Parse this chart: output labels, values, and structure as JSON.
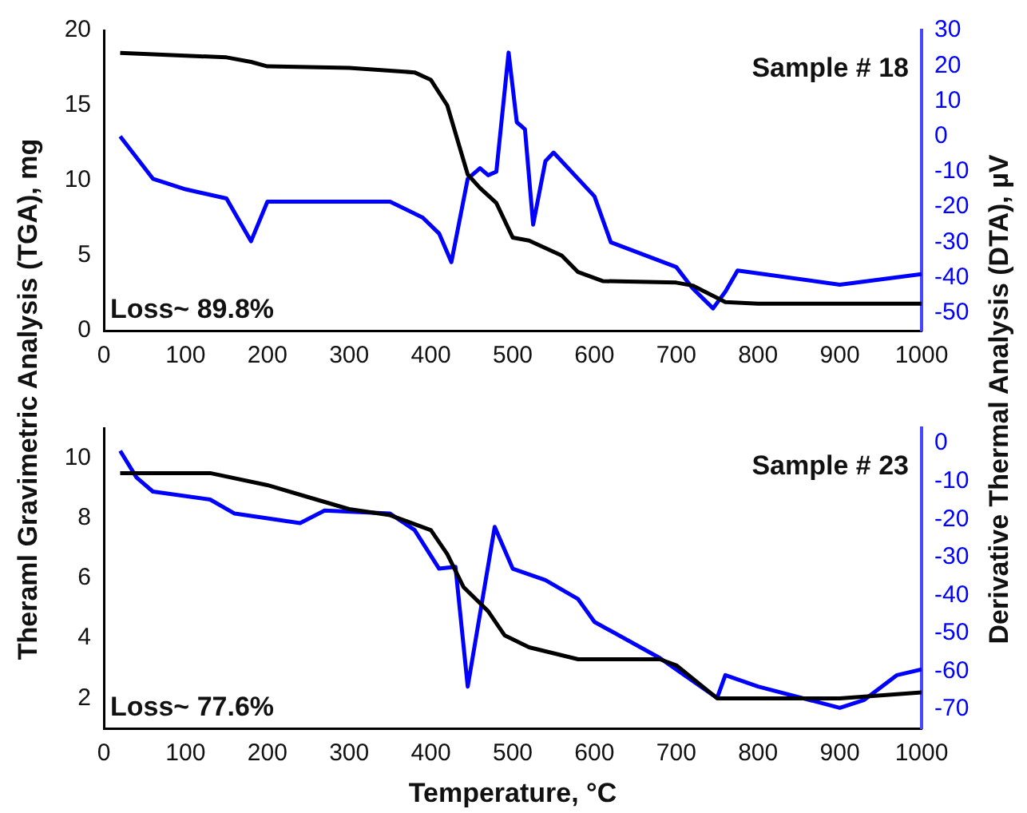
{
  "chart_data": [
    {
      "type": "line",
      "ylabel": "Theraml Gravimetric Analysis (TGA), mg",
      "y2label": "Derivative Thermal Analysis (DTA), µV",
      "annotations": [
        "Sample # 18",
        "Loss~ 89.8%"
      ],
      "xlim": [
        0,
        1000
      ],
      "xticks": [
        0,
        100,
        200,
        300,
        400,
        500,
        600,
        700,
        800,
        900,
        1000
      ],
      "ylim": [
        0,
        20
      ],
      "yticks": [
        0,
        5,
        10,
        15,
        20
      ],
      "y2lim": [
        -55,
        30
      ],
      "y2ticks": [
        -50,
        -40,
        -30,
        -20,
        -10,
        0,
        10,
        20,
        30
      ],
      "series": [
        {
          "color": "#000000",
          "x": [
            20,
            150,
            180,
            200,
            300,
            380,
            400,
            420,
            445,
            460,
            480,
            500,
            520,
            560,
            580,
            610,
            700,
            720,
            760,
            800,
            1000
          ],
          "values": [
            18.5,
            18.2,
            17.9,
            17.6,
            17.5,
            17.2,
            16.7,
            15,
            10.4,
            9.5,
            8.5,
            6.2,
            6,
            5,
            3.9,
            3.3,
            3.2,
            3,
            1.9,
            1.8,
            1.8
          ]
        },
        {
          "color": "#0000ff",
          "axis": "y2",
          "x": [
            20,
            60,
            100,
            150,
            180,
            200,
            350,
            390,
            410,
            425,
            445,
            460,
            470,
            480,
            495,
            505,
            515,
            525,
            540,
            550,
            600,
            620,
            700,
            720,
            745,
            760,
            775,
            900,
            1000
          ],
          "values": [
            0,
            -12,
            -15,
            -17.6,
            -29.7,
            -18.5,
            -18.5,
            -23,
            -27.5,
            -35.6,
            -12,
            -9,
            -11,
            -10,
            23.7,
            4,
            2,
            -25,
            -7,
            -4.6,
            -17,
            -30,
            -37,
            -43,
            -48.7,
            -44,
            -38,
            -42,
            -39
          ]
        }
      ]
    },
    {
      "type": "line",
      "xlabel": "Temperature, °C",
      "annotations": [
        "Sample # 23",
        "Loss~ 77.6%"
      ],
      "xlim": [
        0,
        1000
      ],
      "xticks": [
        0,
        100,
        200,
        300,
        400,
        500,
        600,
        700,
        800,
        900,
        1000
      ],
      "ylim": [
        1,
        11
      ],
      "yticks": [
        2,
        4,
        6,
        8,
        10
      ],
      "y2lim": [
        -75,
        4
      ],
      "y2ticks": [
        -70,
        -60,
        -50,
        -40,
        -30,
        -20,
        -10,
        0
      ],
      "series": [
        {
          "color": "#000000",
          "x": [
            20,
            130,
            200,
            250,
            300,
            350,
            400,
            420,
            440,
            470,
            490,
            520,
            580,
            600,
            680,
            700,
            750,
            900,
            1000
          ],
          "values": [
            9.5,
            9.5,
            9.1,
            8.7,
            8.3,
            8.1,
            7.6,
            6.8,
            5.7,
            4.9,
            4.1,
            3.7,
            3.3,
            3.3,
            3.3,
            3.1,
            2,
            2,
            2.2
          ]
        },
        {
          "color": "#0000ff",
          "axis": "y2",
          "x": [
            20,
            40,
            60,
            130,
            160,
            240,
            270,
            350,
            380,
            410,
            430,
            445,
            478,
            500,
            540,
            580,
            600,
            680,
            710,
            750,
            760,
            800,
            900,
            930,
            970,
            1000
          ],
          "values": [
            -2,
            -9,
            -12.7,
            -14.8,
            -18.5,
            -21,
            -17.7,
            -18.5,
            -22.8,
            -33,
            -32.5,
            -64,
            -22,
            -33,
            -36,
            -41,
            -47,
            -56.5,
            -61,
            -67,
            -61,
            -64,
            -69.6,
            -67.5,
            -61,
            -59.5
          ]
        }
      ]
    }
  ]
}
